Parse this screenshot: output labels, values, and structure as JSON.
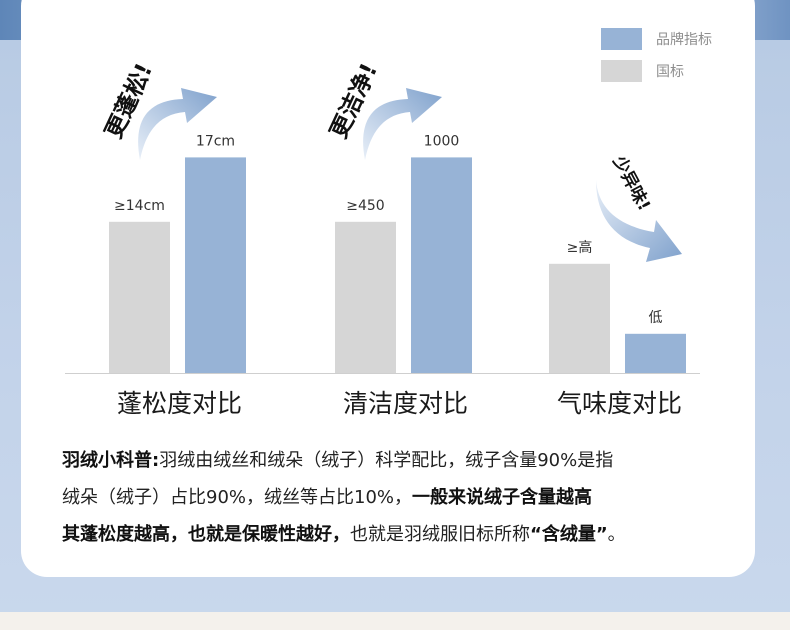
{
  "chart_data": {
    "type": "bar",
    "legend": {
      "position": "top-right",
      "entries": [
        {
          "name": "品牌指标",
          "color": "#97b3d6"
        },
        {
          "name": "国标",
          "color": "#d6d6d6"
        }
      ]
    },
    "groups": [
      {
        "title": "蓬松度对比",
        "tag": "更蓬松!",
        "national": {
          "label": "≥14cm",
          "level": 0.54
        },
        "brand": {
          "label": "17cm",
          "level": 0.77
        }
      },
      {
        "title": "清洁度对比",
        "tag": "更洁净!",
        "national": {
          "label": "≥450",
          "level": 0.54
        },
        "brand": {
          "label": "1000",
          "level": 0.77
        }
      },
      {
        "title": "气味度对比",
        "tag": "少异味!",
        "national": {
          "label": "≥高",
          "level": 0.39
        },
        "brand": {
          "label": "低",
          "level": 0.14
        }
      }
    ]
  },
  "note": {
    "line1_bold": "羽绒小科普:",
    "line1_rest": "羽绒由绒丝和绒朵（绒子）科学配比，绒子含量90%是指",
    "line2_normal": "绒朵（绒子）占比90%，绒丝等占比10%，",
    "line2_bold": "一般来说绒子含量越高",
    "line3_bold": "其蓬松度越高，也就是保暖性越好，",
    "line3_normal": "也就是羽绒服旧标所称",
    "line3_quote": "“含绒量”",
    "line3_end": "。"
  }
}
